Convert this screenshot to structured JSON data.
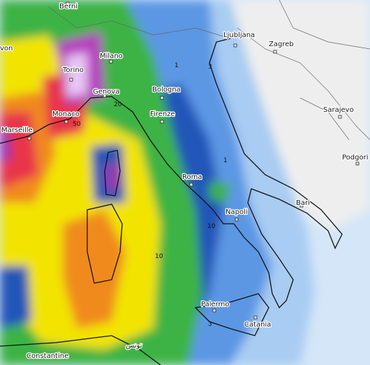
{
  "cities": [
    "Berni",
    "von",
    "Milano",
    "Torino",
    "Genova",
    "Bologna",
    "Monaco",
    "Marseille",
    "Firenze",
    "Roma",
    "Napoli",
    "Bari",
    "Palermo",
    "Catania",
    "Ljubljana",
    "Zagreb",
    "Sarajevo",
    "Podgori",
    "Constantine",
    "تونس"
  ],
  "contour_labels": [
    1,
    3,
    20,
    50,
    10,
    10,
    1,
    3
  ]
}
